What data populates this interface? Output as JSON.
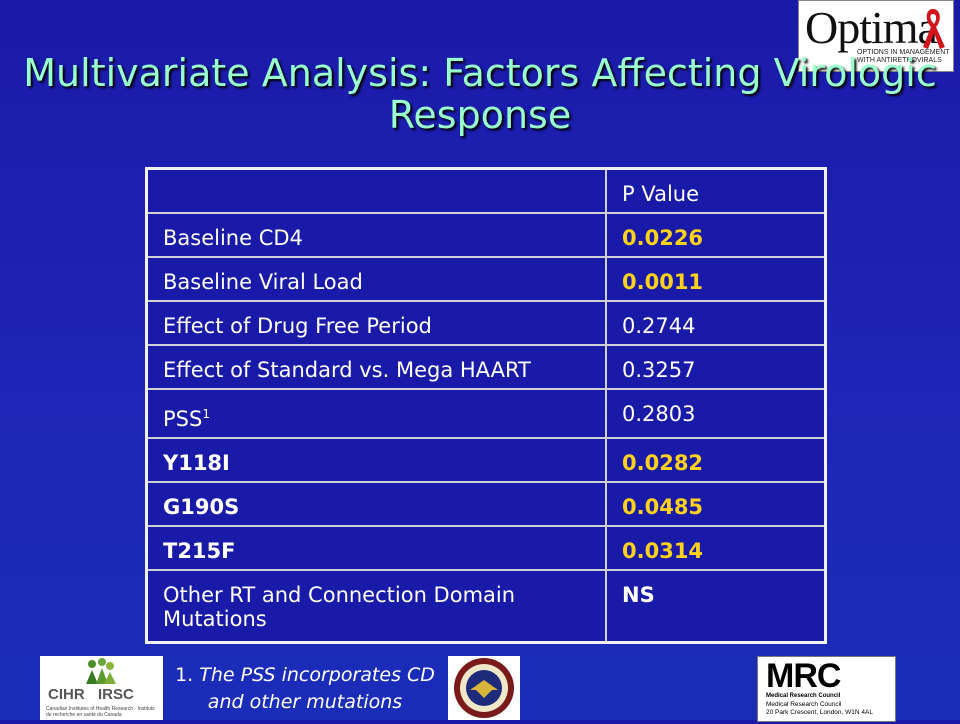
{
  "slide": {
    "title": "Multivariate Analysis: Factors Affecting Virologic Response",
    "table": {
      "header": [
        "",
        "P Value"
      ],
      "rows": [
        {
          "factor": "Baseline CD4",
          "p_value": "0.0226",
          "significant": true
        },
        {
          "factor": "Baseline Viral Load",
          "p_value": "0.0011",
          "significant": true
        },
        {
          "factor": "Effect of Drug Free Period",
          "p_value": "0.2744",
          "significant": false
        },
        {
          "factor": "Effect of Standard vs. Mega HAART",
          "p_value": "0.3257",
          "significant": false
        },
        {
          "factor": "PSS",
          "factor_sup": "1",
          "p_value": "0.2803",
          "significant": false
        },
        {
          "factor": "Y118I",
          "p_value": "0.0282",
          "significant": true
        },
        {
          "factor": "G190S",
          "p_value": "0.0485",
          "significant": true
        },
        {
          "factor": "T215F",
          "p_value": "0.0314",
          "significant": true
        },
        {
          "factor": "Other RT and Connection Domain Mutations",
          "p_value": "NS",
          "significant": false
        }
      ]
    },
    "footnote": {
      "number": "1.",
      "text": "The PSS incorporates CD and other mutations"
    }
  },
  "logos": {
    "optima": {
      "word": "Optima",
      "tagline": "OPTIONS IN MANAGEMENT WITH ANTIRETROVIRALS"
    },
    "cihr": {
      "left": "CIHR",
      "right": "IRSC",
      "subtitle": "Canadian Institutes of Health Research · Instituts de recherche en santé du Canada"
    },
    "va": {},
    "mrc": {
      "word": "MRC",
      "sub": "Medical Research Council",
      "council": "Medical Research Council",
      "address": "20 Park Crescent, London, W1N 4AL"
    }
  },
  "colors": {
    "background": "#1a1aa8",
    "title": "#99ffcc",
    "significant": "#ffd21a",
    "text": "#ffffff"
  }
}
